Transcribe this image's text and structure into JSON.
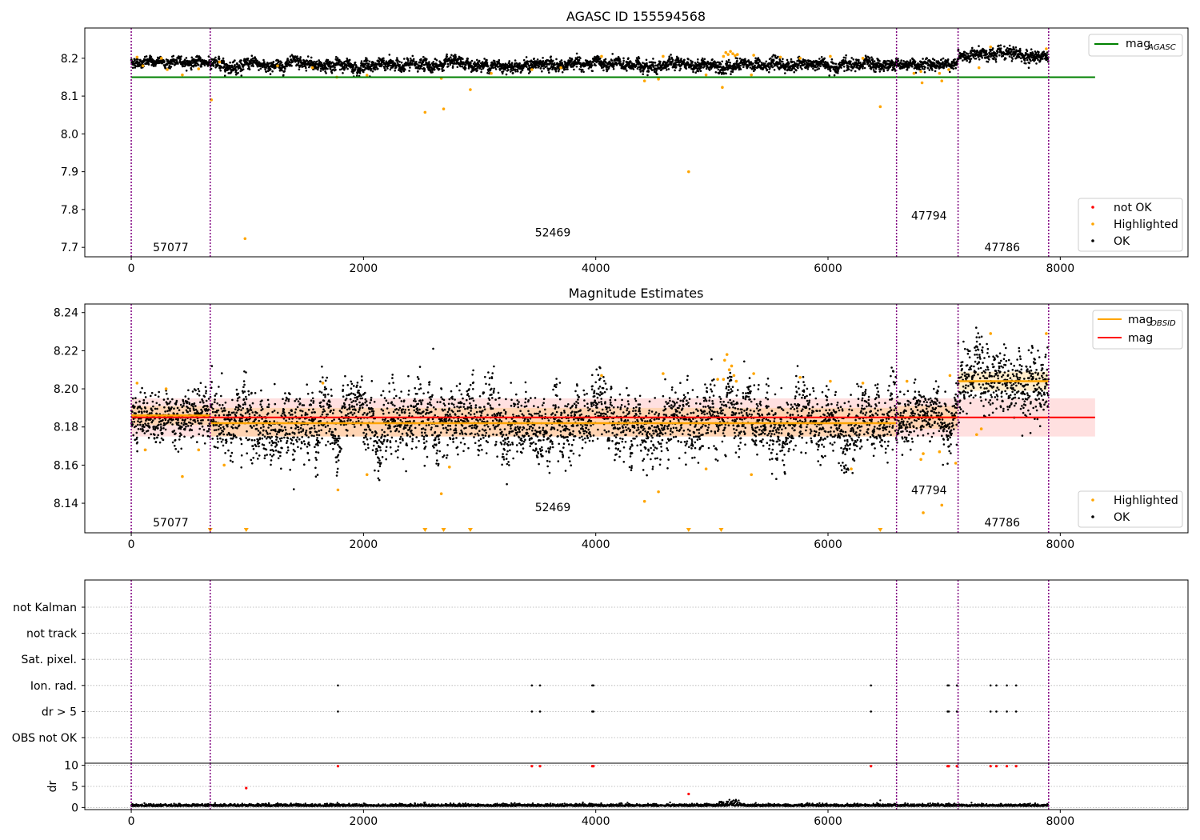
{
  "chart_data": [
    {
      "type": "scatter",
      "title": "AGASC ID 155594568",
      "xlim": [
        -400,
        9100
      ],
      "ylim": [
        7.675,
        8.28
      ],
      "xticks": [
        0,
        2000,
        4000,
        6000,
        8000
      ],
      "yticks": [
        7.7,
        7.8,
        7.9,
        8.0,
        8.1,
        8.2
      ],
      "yticklabels": [
        "7.7",
        "7.8",
        "7.9",
        "8.0",
        "8.1",
        "8.2"
      ],
      "grid": false,
      "obs_boundaries": [
        0,
        680,
        6590,
        7120,
        7900
      ],
      "obsid_labels": [
        {
          "x": 340,
          "y": 7.7,
          "text": "57077"
        },
        {
          "x": 3630,
          "y": 7.74,
          "text": "52469"
        },
        {
          "x": 6870,
          "y": 7.784,
          "text": "47794"
        },
        {
          "x": 7500,
          "y": 7.7,
          "text": "47786"
        }
      ],
      "reference_line": {
        "name": "mag_AGASC",
        "y": 8.15,
        "x": [
          0,
          8300
        ],
        "color": "#008000"
      },
      "ok_segments": [
        {
          "x": [
            0,
            680
          ],
          "center": 8.19,
          "spread": 0.016
        },
        {
          "x": [
            680,
            6590
          ],
          "center": 8.182,
          "spread": 0.02
        },
        {
          "x": [
            6590,
            7120
          ],
          "center": 8.186,
          "spread": 0.018
        },
        {
          "x": [
            7120,
            7900
          ],
          "center": 8.207,
          "spread": 0.02
        }
      ],
      "highlighted_points": [
        [
          50,
          8.203
        ],
        [
          100,
          8.18
        ],
        [
          260,
          8.2
        ],
        [
          310,
          8.17
        ],
        [
          440,
          8.156
        ],
        [
          580,
          8.172
        ],
        [
          690,
          8.09
        ],
        [
          760,
          8.19
        ],
        [
          980,
          7.723
        ],
        [
          1260,
          8.18
        ],
        [
          1560,
          8.175
        ],
        [
          1770,
          8.15
        ],
        [
          2030,
          8.155
        ],
        [
          2530,
          8.057
        ],
        [
          2670,
          8.147
        ],
        [
          2690,
          8.066
        ],
        [
          2920,
          8.117
        ],
        [
          3100,
          8.16
        ],
        [
          3450,
          8.17
        ],
        [
          3700,
          8.175
        ],
        [
          4050,
          8.205
        ],
        [
          4420,
          8.14
        ],
        [
          4540,
          8.145
        ],
        [
          4580,
          8.205
        ],
        [
          4800,
          7.9
        ],
        [
          4950,
          8.156
        ],
        [
          5090,
          8.123
        ],
        [
          5100,
          8.205
        ],
        [
          5120,
          8.215
        ],
        [
          5140,
          8.21
        ],
        [
          5160,
          8.218
        ],
        [
          5180,
          8.212
        ],
        [
          5200,
          8.207
        ],
        [
          5220,
          8.21
        ],
        [
          5340,
          8.156
        ],
        [
          5360,
          8.208
        ],
        [
          5590,
          8.203
        ],
        [
          5760,
          8.2
        ],
        [
          6020,
          8.205
        ],
        [
          6300,
          8.2
        ],
        [
          6450,
          8.072
        ],
        [
          6740,
          8.16
        ],
        [
          6800,
          8.165
        ],
        [
          6810,
          8.135
        ],
        [
          6960,
          8.16
        ],
        [
          6980,
          8.14
        ],
        [
          7040,
          8.17
        ],
        [
          7300,
          8.175
        ],
        [
          7400,
          8.23
        ],
        [
          7880,
          8.225
        ]
      ],
      "not_ok_points": [],
      "legend": {
        "position": "top-right",
        "entries": [
          {
            "label": "mag",
            "sub": "AGASC",
            "color": "#008000"
          }
        ]
      },
      "legend2": {
        "position": "lower-right",
        "entries": [
          {
            "label": "not OK",
            "color": "#ff0000"
          },
          {
            "label": "Highlighted",
            "color": "#ffa500"
          },
          {
            "label": "OK",
            "color": "#000000"
          }
        ]
      }
    },
    {
      "type": "scatter",
      "title": "Magnitude Estimates",
      "xlim": [
        -400,
        9100
      ],
      "ylim": [
        8.1245,
        8.2445
      ],
      "xticks": [
        0,
        2000,
        4000,
        6000,
        8000
      ],
      "yticks": [
        8.14,
        8.16,
        8.18,
        8.2,
        8.22,
        8.24
      ],
      "yticklabels": [
        "8.14",
        "8.16",
        "8.18",
        "8.20",
        "8.22",
        "8.24"
      ],
      "grid": false,
      "obs_boundaries": [
        0,
        680,
        6590,
        7120,
        7900
      ],
      "obsid_labels": [
        {
          "x": 340,
          "y": 8.13,
          "text": "57077"
        },
        {
          "x": 3630,
          "y": 8.138,
          "text": "52469"
        },
        {
          "x": 6870,
          "y": 8.147,
          "text": "47794"
        },
        {
          "x": 7500,
          "y": 8.13,
          "text": "47786"
        }
      ],
      "mag_line": {
        "name": "mag",
        "y": 8.185,
        "x": [
          0,
          8300
        ],
        "band": [
          8.175,
          8.195
        ],
        "color": "#ff0000"
      },
      "obsid_mean_lines": [
        {
          "x": [
            0,
            680
          ],
          "y": 8.186,
          "band": [
            8.181,
            8.191
          ]
        },
        {
          "x": [
            680,
            6590
          ],
          "y": 8.182,
          "band": [
            8.175,
            8.19
          ]
        },
        {
          "x": [
            6590,
            7120
          ],
          "y": 8.185,
          "band": [
            8.179,
            8.191
          ]
        },
        {
          "x": [
            7120,
            7900
          ],
          "y": 8.204,
          "band": [
            8.199,
            8.209
          ]
        }
      ],
      "ok_segments": [
        {
          "x": [
            0,
            680
          ],
          "center": 8.186,
          "spread": 0.016
        },
        {
          "x": [
            680,
            6590
          ],
          "center": 8.182,
          "spread": 0.022
        },
        {
          "x": [
            6590,
            7120
          ],
          "center": 8.185,
          "spread": 0.018
        },
        {
          "x": [
            7120,
            7900
          ],
          "center": 8.205,
          "spread": 0.022
        }
      ],
      "highlighted_points": [
        [
          50,
          8.203
        ],
        [
          120,
          8.168
        ],
        [
          300,
          8.2
        ],
        [
          440,
          8.154
        ],
        [
          580,
          8.168
        ],
        [
          800,
          8.16
        ],
        [
          1780,
          8.147
        ],
        [
          1650,
          8.203
        ],
        [
          2030,
          8.155
        ],
        [
          2670,
          8.145
        ],
        [
          2740,
          8.159
        ],
        [
          4050,
          8.207
        ],
        [
          4420,
          8.141
        ],
        [
          4540,
          8.146
        ],
        [
          4580,
          8.208
        ],
        [
          4950,
          8.158
        ],
        [
          5050,
          8.205
        ],
        [
          5100,
          8.205
        ],
        [
          5110,
          8.215
        ],
        [
          5130,
          8.218
        ],
        [
          5150,
          8.21
        ],
        [
          5170,
          8.212
        ],
        [
          5190,
          8.207
        ],
        [
          5210,
          8.204
        ],
        [
          5340,
          8.155
        ],
        [
          5360,
          8.208
        ],
        [
          5760,
          8.206
        ],
        [
          6020,
          8.204
        ],
        [
          6200,
          8.158
        ],
        [
          6300,
          8.203
        ],
        [
          6680,
          8.204
        ],
        [
          6800,
          8.163
        ],
        [
          6820,
          8.166
        ],
        [
          6820,
          8.135
        ],
        [
          6960,
          8.167
        ],
        [
          6980,
          8.139
        ],
        [
          7050,
          8.207
        ],
        [
          7100,
          8.161
        ],
        [
          7280,
          8.176
        ],
        [
          7320,
          8.179
        ],
        [
          7400,
          8.229
        ],
        [
          7880,
          8.229
        ]
      ],
      "below_range_markers": [
        680,
        990,
        2530,
        2690,
        2920,
        4800,
        5080,
        6450
      ],
      "legend": {
        "position": "top-right",
        "entries": [
          {
            "label": "mag",
            "sub": "OBSID",
            "color": "#ffa500"
          },
          {
            "label": "mag",
            "color": "#ff0000"
          }
        ]
      },
      "legend2": {
        "position": "lower-right",
        "entries": [
          {
            "label": "Highlighted",
            "color": "#ffa500"
          },
          {
            "label": "OK",
            "color": "#000000"
          }
        ]
      }
    },
    {
      "type": "scatter",
      "xlim": [
        -400,
        9100
      ],
      "flag_labels": [
        "not Kalman",
        "not track",
        "Sat. pixel.",
        "Ion. rad.",
        "dr > 5",
        "OBS not OK"
      ],
      "flag_points": {
        "Ion. rad.": [
          1780,
          3450,
          3520,
          3970,
          3980,
          6370,
          7030,
          7040,
          7110,
          7400,
          7450,
          7540,
          7620
        ],
        "dr > 5": [
          1780,
          3450,
          3520,
          3970,
          3980,
          6370,
          7030,
          7040,
          7110,
          7400,
          7450,
          7540,
          7620
        ]
      },
      "obs_boundaries": [
        0,
        680,
        6590,
        7120,
        7900
      ]
    },
    {
      "type": "scatter",
      "ylabel": "dr",
      "xlim": [
        -400,
        9100
      ],
      "ylim": [
        -0.5,
        10.5
      ],
      "xticks": [
        0,
        2000,
        4000,
        6000,
        8000
      ],
      "yticks": [
        0,
        5,
        10
      ],
      "dr_baseline": {
        "x": [
          0,
          7900
        ],
        "center": 0.3,
        "spread": 0.25
      },
      "dr_outliers_red": [
        [
          990,
          4.6
        ],
        [
          4800,
          3.2
        ],
        [
          1780,
          9.8
        ],
        [
          3450,
          9.8
        ],
        [
          3520,
          9.8
        ],
        [
          3970,
          9.8
        ],
        [
          3980,
          9.8
        ],
        [
          6370,
          9.8
        ],
        [
          7030,
          9.8
        ],
        [
          7040,
          9.8
        ],
        [
          7110,
          9.8
        ],
        [
          7400,
          9.8
        ],
        [
          7450,
          9.8
        ],
        [
          7540,
          9.8
        ],
        [
          7620,
          9.8
        ]
      ],
      "dr_outliers_black": [
        [
          2530,
          1.2
        ],
        [
          5130,
          1.4
        ],
        [
          6450,
          1.7
        ]
      ],
      "obs_boundaries": [
        0,
        680,
        6590,
        7120,
        7900
      ]
    }
  ],
  "colors": {
    "ok": "#000000",
    "highlighted": "#ffa500",
    "not_ok": "#ff0000",
    "agasc_line": "#008000",
    "mag_line": "#ff0000",
    "obsid_line": "#ffa500",
    "boundary": "#800080",
    "grid": "#b0b0b0"
  }
}
